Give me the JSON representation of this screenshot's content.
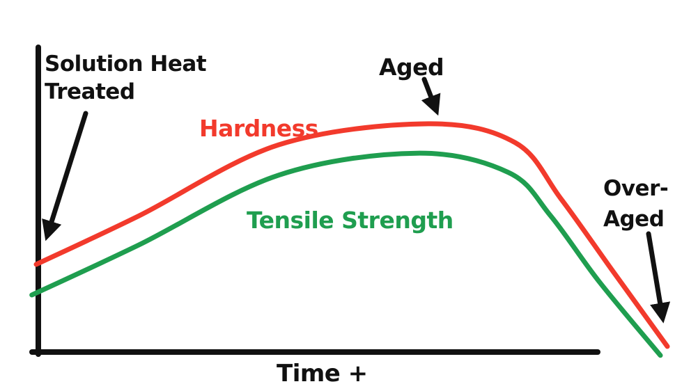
{
  "labels": {
    "solution_heat_treated": [
      "Solution Heat",
      "Treated"
    ],
    "hardness": "Hardness",
    "aged": "Aged",
    "tensile_strength": "Tensile Strength",
    "over_aged": [
      "Over-",
      "Aged"
    ],
    "time_axis": "Time +"
  },
  "colors": {
    "hardness": "#f23a2c",
    "tensile_strength": "#1f9e4f",
    "ink": "#111111",
    "background": "#ffffff"
  },
  "chart_data": {
    "type": "line",
    "title": "",
    "xlabel": "Time +",
    "ylabel": "",
    "axes": {
      "x_label": "Time +",
      "y_label": "",
      "x_ticks": [],
      "y_ticks": [],
      "grid": false,
      "style": "hand-drawn, no numeric scale"
    },
    "value_scale_note": "0-100 arbitrary units estimated from pixel positions; original sketch has no numeric axes",
    "x_range": [
      0,
      100
    ],
    "y_range": [
      0,
      100
    ],
    "legend": "inline colored labels next to curves",
    "series": [
      {
        "name": "Hardness",
        "color": "#f23a2c",
        "x": [
          0,
          16.3,
          38.4,
          62.1,
          75.9,
          83.1,
          91.4,
          100
        ],
        "y": [
          28.1,
          43.8,
          66.7,
          73.5,
          67.4,
          49.4,
          25.8,
          1.6
        ]
      },
      {
        "name": "Tensile Strength",
        "color": "#1f9e4f",
        "x": [
          -0.7,
          16.3,
          38.4,
          60.3,
          74.8,
          81.5,
          89.2,
          98.9
        ],
        "y": [
          18.2,
          34.4,
          56.9,
          64.0,
          57.8,
          43.8,
          22.5,
          -1.3
        ]
      }
    ],
    "annotations": [
      {
        "label": "Solution Heat Treated",
        "points_to": "start of curves at time zero"
      },
      {
        "label": "Aged",
        "points_to": "peak of Hardness curve"
      },
      {
        "label": "Over-Aged",
        "points_to": "descending tail of curves at long time"
      }
    ]
  }
}
